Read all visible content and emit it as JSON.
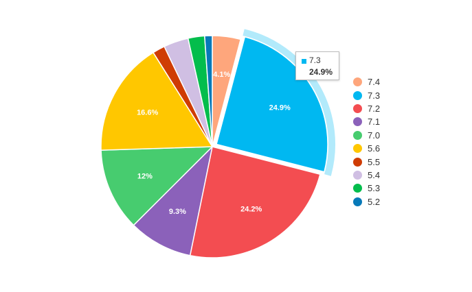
{
  "chart_data": {
    "type": "pie",
    "categories": [
      "7.4",
      "7.3",
      "7.2",
      "7.1",
      "7.0",
      "5.6",
      "5.5",
      "5.4",
      "5.3",
      "5.2"
    ],
    "values": [
      4.1,
      24.9,
      24.2,
      9.3,
      12,
      16.6,
      1.8,
      3.6,
      2.4,
      1.1
    ],
    "data_labels": [
      "4.1%",
      "24.9%",
      "24.2%",
      "9.3%",
      "12%",
      "16.6%",
      "",
      "",
      "",
      ""
    ],
    "colors": [
      "#FEA67C",
      "#00B8F1",
      "#F34D51",
      "#8B61BA",
      "#47CC6F",
      "#FFC700",
      "#CF3C04",
      "#D0BFE3",
      "#03BD4C",
      "#0779B8"
    ],
    "highlighted_index": 1,
    "legend_position": "right",
    "tooltip": {
      "label": "7.3",
      "value": "24.9%"
    }
  }
}
